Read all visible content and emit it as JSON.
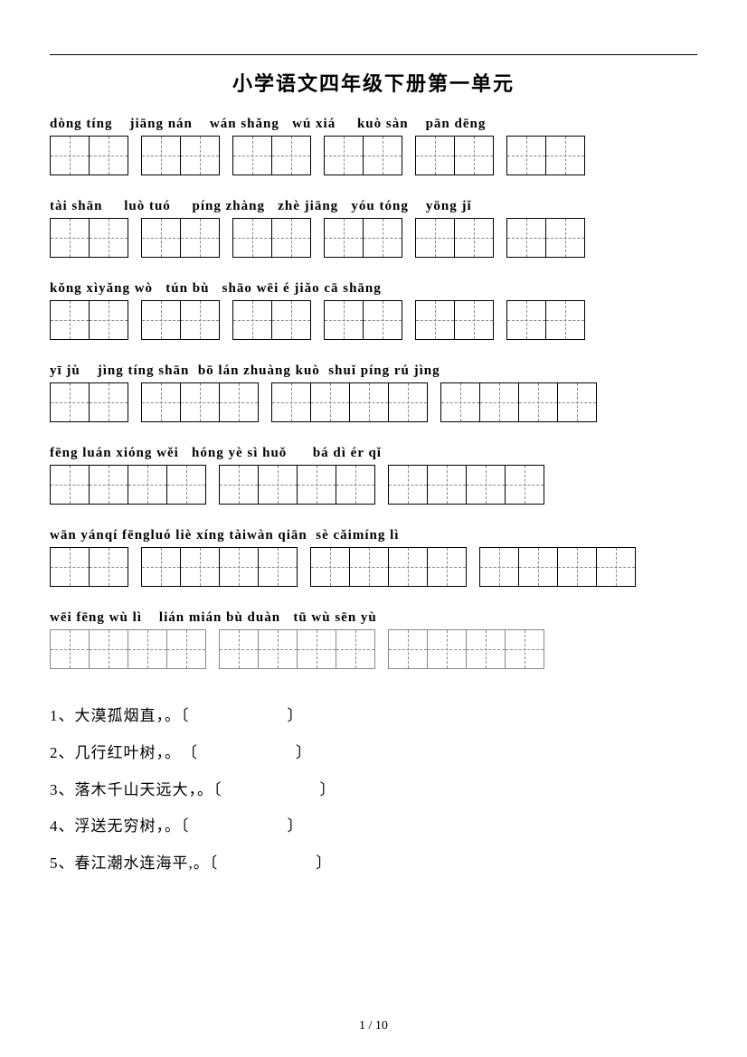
{
  "title": "小学语文四年级下册第一单元",
  "page_number": "1 / 10",
  "rows": [
    {
      "pinyin": [
        {
          "t": "dòng tíng",
          "pad": 4
        },
        {
          "t": "jiāng nán",
          "pad": 4
        },
        {
          "t": "wán shǎng",
          "pad": 3
        },
        {
          "t": "wú xiá",
          "pad": 5
        },
        {
          "t": "kuò sàn",
          "pad": 4
        },
        {
          "t": "pān dēng",
          "pad": 0
        }
      ],
      "groups": [
        2,
        2,
        2,
        2,
        2,
        2
      ],
      "faded": false
    },
    {
      "pinyin": [
        {
          "t": "tài shān",
          "pad": 5
        },
        {
          "t": "luò tuó",
          "pad": 5
        },
        {
          "t": "píng zhàng",
          "pad": 3
        },
        {
          "t": "zhè jiāng",
          "pad": 3
        },
        {
          "t": "yóu tóng",
          "pad": 4
        },
        {
          "t": "yōng jǐ",
          "pad": 0
        }
      ],
      "groups": [
        2,
        2,
        2,
        2,
        2,
        2
      ],
      "faded": false
    },
    {
      "pinyin": [
        {
          "t": "kǒng xì",
          "pad": 0
        },
        {
          "t": "yǎng wò",
          "pad": 3
        },
        {
          "t": "tún bù",
          "pad": 3
        },
        {
          "t": "shāo wēi",
          "pad": 1
        },
        {
          "t": "é jiǎo",
          "pad": 1
        },
        {
          "t": "cā shāng",
          "pad": 0
        }
      ],
      "groups": [
        2,
        2,
        2,
        2,
        2,
        2
      ],
      "faded": false
    },
    {
      "pinyin": [
        {
          "t": "yī jù",
          "pad": 4
        },
        {
          "t": "jìng tíng shān",
          "pad": 2
        },
        {
          "t": "bō lán zhuàng kuò",
          "pad": 2
        },
        {
          "t": "shuǐ píng rú jìng",
          "pad": 0
        }
      ],
      "groups": [
        2,
        3,
        4,
        4
      ],
      "faded": false
    },
    {
      "pinyin": [
        {
          "t": "fēng luán xióng wěi",
          "pad": 3
        },
        {
          "t": "hóng yè sì huǒ",
          "pad": 6
        },
        {
          "t": "bá dì ér qǐ",
          "pad": 0
        }
      ],
      "groups": [
        4,
        4,
        4
      ],
      "faded": false
    },
    {
      "pinyin": [
        {
          "t": "wān yán",
          "pad": 0
        },
        {
          "t": "qí fēng",
          "pad": 0
        },
        {
          "t": "luó liè",
          "pad": 1
        },
        {
          "t": "xíng tài",
          "pad": 0
        },
        {
          "t": "wàn qiān",
          "pad": 2
        },
        {
          "t": "sè cǎi",
          "pad": 0
        },
        {
          "t": "míng lì",
          "pad": 0
        }
      ],
      "groups": [
        2,
        4,
        4,
        4
      ],
      "faded": false
    },
    {
      "pinyin": [
        {
          "t": "wēi fēng wù lì",
          "pad": 4
        },
        {
          "t": "lián mián bù duàn",
          "pad": 3
        },
        {
          "t": "tū wù sēn yù",
          "pad": 0
        }
      ],
      "groups": [
        4,
        4,
        4
      ],
      "faded": true
    }
  ],
  "questions": [
    {
      "n": "1",
      "text": "大漠孤烟直，。〔",
      "close": "〕",
      "gap": 12
    },
    {
      "n": "2",
      "text": "几行红叶树，。　〔",
      "close": "〕",
      "gap": 12
    },
    {
      "n": "3",
      "text": "落木千山天远大，。〔",
      "close": "〕",
      "gap": 12
    },
    {
      "n": "4",
      "text": "浮送无穷树，。〔",
      "close": "〕",
      "gap": 12
    },
    {
      "n": "5",
      "text": "春江潮水连海平,。〔",
      "close": "〕",
      "gap": 12
    }
  ]
}
